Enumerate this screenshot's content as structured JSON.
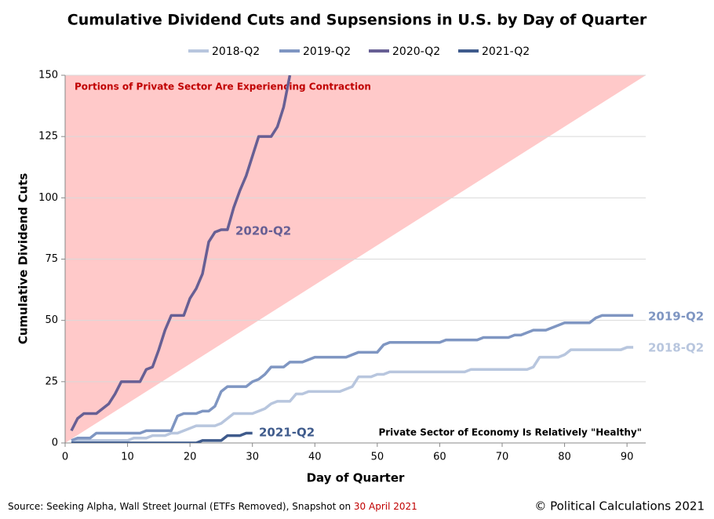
{
  "chart_data": {
    "type": "line",
    "title": "Cumulative Dividend Cuts and Supsensions in U.S. by Day of Quarter",
    "x_label": "Day of Quarter",
    "y_label": "Cumulative Dividend Cuts",
    "annotations": [
      "Portions of Private Sector Are Experiencing Contraction",
      "Private Sector of Economy Is Relatively \"Healthy\""
    ],
    "source": "Source: Seeking Alpha, Wall Street Journal (ETFs Removed), Snapshot on ",
    "source_date": "30 April 2021",
    "credit": "© Political Calculations 2021",
    "xlim": [
      0,
      93
    ],
    "xticks": [
      0,
      10,
      20,
      30,
      40,
      50,
      60,
      70,
      80,
      90
    ],
    "ylim": [
      0,
      150
    ],
    "yticks": [
      0,
      25,
      50,
      75,
      100,
      125,
      150
    ],
    "grid": true,
    "series": [
      {
        "name": "2018-Q2",
        "color": "#b8c6de",
        "x": [
          1,
          2,
          3,
          4,
          5,
          6,
          7,
          8,
          9,
          10,
          11,
          12,
          13,
          14,
          15,
          16,
          17,
          18,
          19,
          20,
          21,
          22,
          23,
          24,
          25,
          26,
          27,
          28,
          29,
          30,
          31,
          32,
          33,
          34,
          35,
          36,
          37,
          38,
          39,
          40,
          41,
          42,
          43,
          44,
          45,
          46,
          47,
          48,
          49,
          50,
          51,
          52,
          53,
          54,
          55,
          56,
          57,
          58,
          59,
          60,
          61,
          62,
          63,
          64,
          65,
          66,
          67,
          68,
          69,
          70,
          71,
          72,
          73,
          74,
          75,
          76,
          77,
          78,
          79,
          80,
          81,
          82,
          83,
          84,
          85,
          86,
          87,
          88,
          89,
          90,
          91
        ],
        "values": [
          0,
          1,
          1,
          1,
          1,
          1,
          1,
          1,
          1,
          1,
          2,
          2,
          2,
          3,
          3,
          3,
          4,
          4,
          5,
          6,
          7,
          7,
          7,
          7,
          8,
          10,
          12,
          12,
          12,
          12,
          13,
          14,
          16,
          17,
          17,
          17,
          20,
          20,
          21,
          21,
          21,
          21,
          21,
          21,
          22,
          23,
          27,
          27,
          27,
          28,
          28,
          29,
          29,
          29,
          29,
          29,
          29,
          29,
          29,
          29,
          29,
          29,
          29,
          29,
          30,
          30,
          30,
          30,
          30,
          30,
          30,
          30,
          30,
          30,
          31,
          35,
          35,
          35,
          35,
          36,
          38,
          38,
          38,
          38,
          38,
          38,
          38,
          38,
          38,
          39,
          39
        ]
      },
      {
        "name": "2019-Q2",
        "color": "#7f96c2",
        "x": [
          1,
          2,
          3,
          4,
          5,
          6,
          7,
          8,
          9,
          10,
          11,
          12,
          13,
          14,
          15,
          16,
          17,
          18,
          19,
          20,
          21,
          22,
          23,
          24,
          25,
          26,
          27,
          28,
          29,
          30,
          31,
          32,
          33,
          34,
          35,
          36,
          37,
          38,
          39,
          40,
          41,
          42,
          43,
          44,
          45,
          46,
          47,
          48,
          49,
          50,
          51,
          52,
          53,
          54,
          55,
          56,
          57,
          58,
          59,
          60,
          61,
          62,
          63,
          64,
          65,
          66,
          67,
          68,
          69,
          70,
          71,
          72,
          73,
          74,
          75,
          76,
          77,
          78,
          79,
          80,
          81,
          82,
          83,
          84,
          85,
          86,
          87,
          88,
          89,
          90,
          91
        ],
        "values": [
          1,
          2,
          2,
          2,
          4,
          4,
          4,
          4,
          4,
          4,
          4,
          4,
          5,
          5,
          5,
          5,
          5,
          11,
          12,
          12,
          12,
          13,
          13,
          15,
          21,
          23,
          23,
          23,
          23,
          25,
          26,
          28,
          31,
          31,
          31,
          33,
          33,
          33,
          34,
          35,
          35,
          35,
          35,
          35,
          35,
          36,
          37,
          37,
          37,
          37,
          40,
          41,
          41,
          41,
          41,
          41,
          41,
          41,
          41,
          41,
          42,
          42,
          42,
          42,
          42,
          42,
          43,
          43,
          43,
          43,
          43,
          44,
          44,
          45,
          46,
          46,
          46,
          47,
          48,
          49,
          49,
          49,
          49,
          49,
          51,
          52,
          52,
          52,
          52,
          52,
          52
        ]
      },
      {
        "name": "2020-Q2",
        "color": "#675f94",
        "x": [
          1,
          2,
          3,
          4,
          5,
          6,
          7,
          8,
          9,
          10,
          11,
          12,
          13,
          14,
          15,
          16,
          17,
          18,
          19,
          20,
          21,
          22,
          23,
          24,
          25,
          26,
          27,
          28,
          29,
          30,
          31,
          32,
          33,
          34,
          35,
          36
        ],
        "values": [
          5,
          10,
          12,
          12,
          12,
          14,
          16,
          20,
          25,
          25,
          25,
          25,
          30,
          31,
          38,
          46,
          52,
          52,
          52,
          59,
          63,
          69,
          82,
          86,
          87,
          87,
          96,
          103,
          109,
          117,
          125,
          125,
          125,
          129,
          137,
          150
        ]
      },
      {
        "name": "2021-Q2",
        "color": "#3f5b8c",
        "x": [
          1,
          2,
          3,
          4,
          5,
          6,
          7,
          8,
          9,
          10,
          11,
          12,
          13,
          14,
          15,
          16,
          17,
          18,
          19,
          20,
          21,
          22,
          23,
          24,
          25,
          26,
          27,
          28,
          29,
          30
        ],
        "values": [
          0,
          0,
          0,
          0,
          0,
          0,
          0,
          0,
          0,
          0,
          0,
          0,
          0,
          0,
          0,
          0,
          0,
          0,
          0,
          0,
          0,
          1,
          1,
          1,
          1,
          3,
          3,
          3,
          4,
          4
        ]
      }
    ]
  }
}
